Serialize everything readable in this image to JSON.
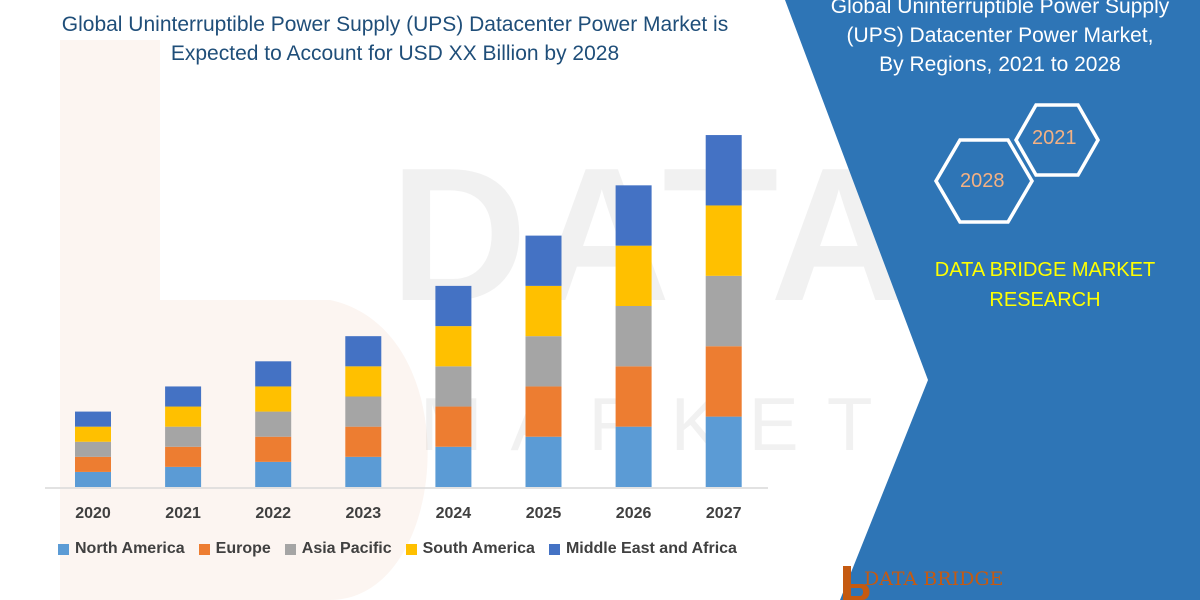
{
  "title": {
    "line1": "Global Uninterruptible Power Supply (UPS) Datacenter Power Market is",
    "line2": "Expected to Account for USD XX Billion by 2028"
  },
  "side_panel": {
    "title_line1": "Global Uninterruptible Power Supply",
    "title_line2": "(UPS) Datacenter Power Market,",
    "title_line3": "By Regions, 2021 to 2028",
    "hex_upper": "2021",
    "hex_lower": "2028",
    "brand_line1": "DATA BRIDGE MARKET",
    "brand_line2": "RESEARCH",
    "footer_logo_text": "DATA BRIDGE",
    "panel_color": "#2e75b6",
    "brand_text_color": "#ffff00"
  },
  "watermark": {
    "text": "DATA BRIDGE",
    "subtext": "MARKET RESEARCH"
  },
  "chart_data": {
    "type": "bar",
    "stacked": true,
    "categories": [
      "2020",
      "2021",
      "2022",
      "2023",
      "2024",
      "2025",
      "2026",
      "2027"
    ],
    "series": [
      {
        "name": "North America",
        "color": "#5b9bd5",
        "values": [
          15,
          20,
          25,
          30,
          40,
          50,
          60,
          70
        ]
      },
      {
        "name": "Europe",
        "color": "#ed7d31",
        "values": [
          15,
          20,
          25,
          30,
          40,
          50,
          60,
          70
        ]
      },
      {
        "name": "Asia Pacific",
        "color": "#a5a5a5",
        "values": [
          15,
          20,
          25,
          30,
          40,
          50,
          60,
          70
        ]
      },
      {
        "name": "South America",
        "color": "#ffc000",
        "values": [
          15,
          20,
          25,
          30,
          40,
          50,
          60,
          70
        ]
      },
      {
        "name": "Middle East and Africa",
        "color": "#4472c4",
        "values": [
          15,
          20,
          25,
          30,
          40,
          50,
          60,
          70
        ]
      }
    ],
    "ylim": [
      0,
      360
    ],
    "grid": false,
    "y_axis_shown": false,
    "legend_position": "bottom"
  }
}
